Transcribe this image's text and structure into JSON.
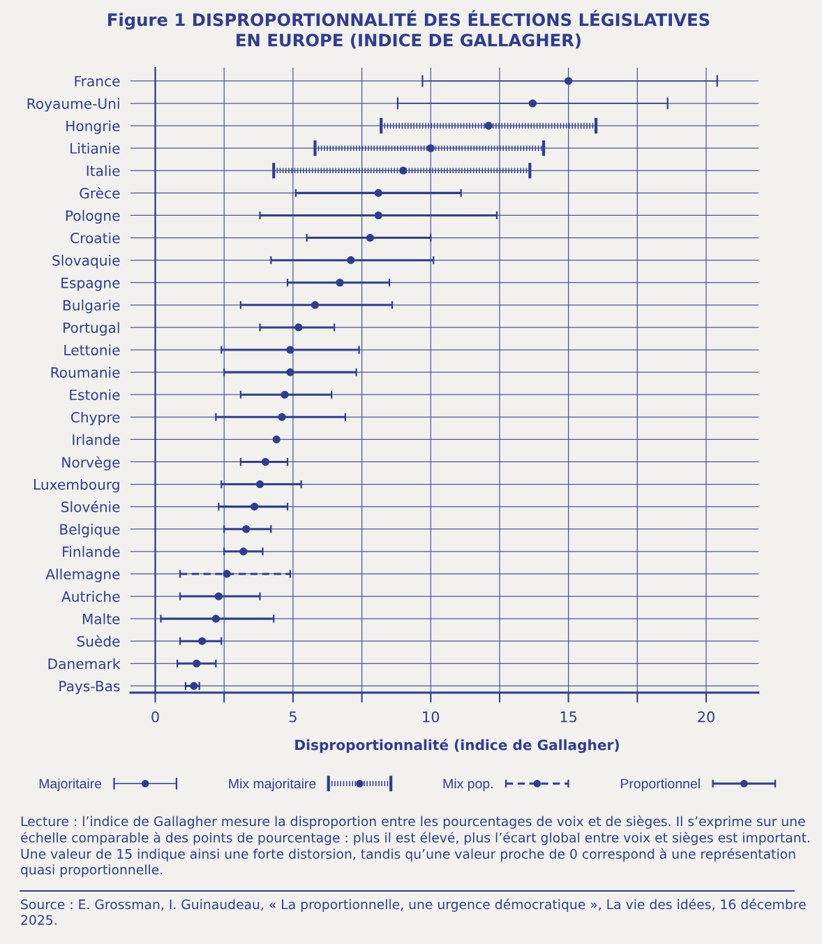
{
  "chart_data": {
    "type": "scatter",
    "orientation": "horizontal",
    "title": "Figure 1 DISPROPORTIONNALITÉ DES ÉLECTIONS LÉGISLATIVES\nEN EUROPE (INDICE DE GALLAGHER)",
    "xlabel": "Disproportionnalité (indice de Gallagher)",
    "categories": [
      "France",
      "Royaume-Uni",
      "Hongrie",
      "Litianie",
      "Italie",
      "Grèce",
      "Pologne",
      "Croatie",
      "Slovaquie",
      "Espagne",
      "Bulgarie",
      "Portugal",
      "Lettonie",
      "Roumanie",
      "Estonie",
      "Chypre",
      "Irlande",
      "Norvège",
      "Luxembourg",
      "Slovénie",
      "Belgique",
      "Finlande",
      "Allemagne",
      "Autriche",
      "Malte",
      "Suède",
      "Danemark",
      "Pays-Bas"
    ],
    "xlim": [
      -0.9,
      21.9
    ],
    "xticks": [
      0,
      {
        "value": 2.5,
        "label": null
      },
      5,
      {
        "value": 7.5,
        "label": null
      },
      10,
      {
        "value": 12.5,
        "label": null
      },
      15,
      {
        "value": 17.5,
        "label": null
      },
      20
    ],
    "grid": true,
    "legend": "bottom",
    "marker": "circle",
    "series": [
      {
        "name": "Majoritaire",
        "color": "#2e3d93",
        "line_style": "solid",
        "values": [
          15.0,
          13.7,
          null,
          null,
          null,
          null,
          null,
          null,
          null,
          null,
          null,
          null,
          null,
          null,
          null,
          null,
          null,
          null,
          null,
          null,
          null,
          null,
          null,
          null,
          null,
          null,
          null,
          null
        ],
        "errors": [
          [
            9.7,
            20.4
          ],
          [
            8.8,
            18.6
          ],
          null,
          null,
          null,
          null,
          null,
          null,
          null,
          null,
          null,
          null,
          null,
          null,
          null,
          null,
          null,
          null,
          null,
          null,
          null,
          null,
          null,
          null,
          null,
          null,
          null,
          null
        ]
      },
      {
        "name": "Mix majoritaire",
        "color": "#2e3d93",
        "line_style": "dotted",
        "values": [
          null,
          null,
          12.1,
          10.0,
          9.0,
          null,
          null,
          null,
          null,
          null,
          null,
          null,
          null,
          null,
          null,
          null,
          null,
          null,
          null,
          null,
          null,
          null,
          null,
          null,
          null,
          null,
          null,
          null
        ],
        "errors": [
          null,
          null,
          [
            8.2,
            16.0
          ],
          [
            5.8,
            14.1
          ],
          [
            4.3,
            13.6
          ],
          null,
          null,
          null,
          null,
          null,
          null,
          null,
          null,
          null,
          null,
          null,
          null,
          null,
          null,
          null,
          null,
          null,
          null,
          null,
          null,
          null,
          null,
          null
        ]
      },
      {
        "name": "Mix pop.",
        "color": "#2e3d93",
        "line_style": "dashed",
        "values": [
          null,
          null,
          null,
          null,
          null,
          null,
          null,
          null,
          null,
          null,
          null,
          null,
          null,
          null,
          null,
          null,
          null,
          null,
          null,
          null,
          null,
          null,
          2.6,
          null,
          null,
          null,
          null,
          null
        ],
        "errors": [
          null,
          null,
          null,
          null,
          null,
          null,
          null,
          null,
          null,
          null,
          null,
          null,
          null,
          null,
          null,
          null,
          null,
          null,
          null,
          null,
          null,
          null,
          [
            0.9,
            4.9
          ],
          null,
          null,
          null,
          null,
          null
        ]
      },
      {
        "name": "Proportionnel",
        "color": "#2e3d93",
        "line_style": "solid",
        "values": [
          null,
          null,
          null,
          null,
          null,
          8.1,
          8.1,
          7.8,
          7.1,
          6.7,
          5.8,
          5.2,
          4.9,
          4.9,
          4.7,
          4.6,
          4.4,
          4.0,
          3.8,
          3.6,
          3.3,
          3.2,
          null,
          2.3,
          2.2,
          1.7,
          1.5,
          1.4
        ],
        "errors": [
          null,
          null,
          null,
          null,
          null,
          [
            5.1,
            11.1
          ],
          [
            3.8,
            12.4
          ],
          [
            5.5,
            10.0
          ],
          [
            4.2,
            10.1
          ],
          [
            4.8,
            8.5
          ],
          [
            3.1,
            8.6
          ],
          [
            3.8,
            6.5
          ],
          [
            2.4,
            7.4
          ],
          [
            2.5,
            7.3
          ],
          [
            3.1,
            6.4
          ],
          [
            2.2,
            6.9
          ],
          null,
          [
            3.1,
            4.8
          ],
          [
            2.4,
            5.3
          ],
          [
            2.3,
            4.8
          ],
          [
            2.5,
            4.2
          ],
          [
            2.5,
            3.9
          ],
          null,
          [
            0.9,
            3.8
          ],
          [
            0.2,
            4.3
          ],
          [
            0.9,
            2.4
          ],
          [
            0.8,
            2.2
          ],
          [
            1.1,
            1.6
          ]
        ]
      }
    ],
    "annotations": [
      "Lecture : l’indice de Gallagher mesure la disproportion entre les pourcentages de voix et de sièges. Il s’exprime sur une échelle comparable à des points de pourcentage : plus il est élevé, plus l’écart global entre voix et sièges est important. Une valeur de 15 indique ainsi une forte distorsion, tandis qu’une valeur proche de 0 correspond à une représentation quasi proportionnelle.",
      "Source : E. Grossman, I. Guinaudeau, « La proportionnelle, une urgence démocratique », La vie des idées, 16 décembre 2025."
    ]
  }
}
